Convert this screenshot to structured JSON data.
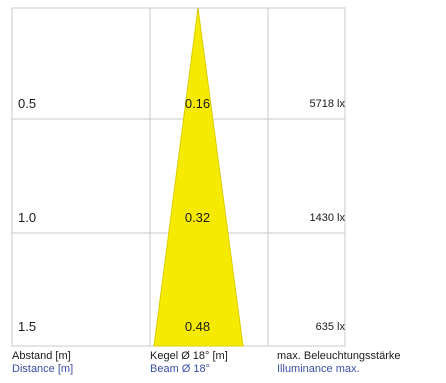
{
  "rows": [
    {
      "distance": "0.5",
      "cone": "0.16",
      "illuminance": "5718 lx"
    },
    {
      "distance": "1.0",
      "cone": "0.32",
      "illuminance": "1430 lx"
    },
    {
      "distance": "1.5",
      "cone": "0.48",
      "illuminance": "635 lx"
    }
  ],
  "legend": {
    "distance_de": "Abstand [m]",
    "distance_en": "Distance [m]",
    "cone_de": "Kegel Ø 18° [m]",
    "cone_en": "Beam Ø 18°",
    "lux_de": "max. Beleuchtungsstärke",
    "lux_en": "Illuminance max."
  },
  "colors": {
    "cone_fill": "#f6ea00",
    "grid": "#c8c8c8",
    "legend_en": "#3a4fa8"
  }
}
